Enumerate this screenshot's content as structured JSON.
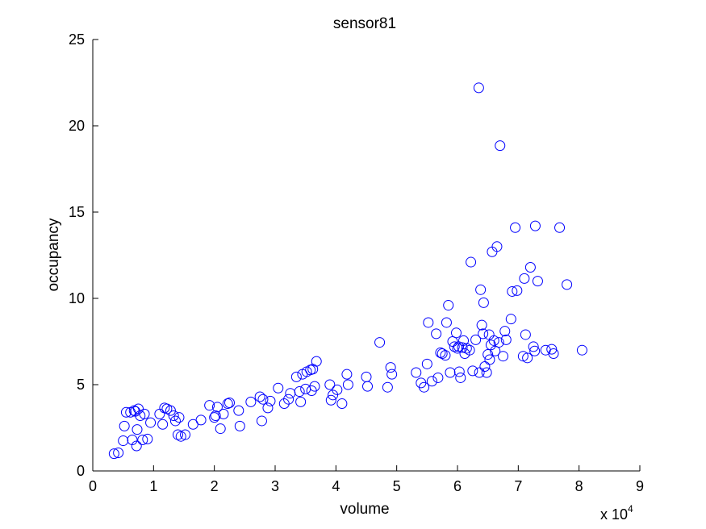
{
  "chart_data": {
    "type": "scatter",
    "title": "sensor81",
    "xlabel": "volume",
    "ylabel": "occupancy",
    "x_multiplier": {
      "base": "x 10",
      "exponent": "4"
    },
    "xlim": [
      0,
      9
    ],
    "ylim": [
      0,
      25
    ],
    "x_ticks": [
      "0",
      "1",
      "2",
      "3",
      "4",
      "5",
      "6",
      "7",
      "8",
      "9"
    ],
    "y_ticks": [
      "0",
      "5",
      "10",
      "15",
      "20",
      "25"
    ],
    "x_tick_values": [
      0,
      1,
      2,
      3,
      4,
      5,
      6,
      7,
      8,
      9
    ],
    "y_tick_values": [
      0,
      5,
      10,
      15,
      20,
      25
    ],
    "grid": false,
    "marker": "circle-open",
    "marker_color": "#0000ff",
    "series": [
      {
        "points": [
          [
            0.35,
            1.0
          ],
          [
            0.42,
            1.05
          ],
          [
            0.5,
            1.75
          ],
          [
            0.52,
            2.6
          ],
          [
            0.55,
            3.4
          ],
          [
            0.62,
            3.4
          ],
          [
            0.65,
            1.8
          ],
          [
            0.68,
            3.5
          ],
          [
            0.7,
            3.45
          ],
          [
            0.72,
            1.45
          ],
          [
            0.73,
            2.4
          ],
          [
            0.75,
            3.6
          ],
          [
            0.78,
            3.2
          ],
          [
            0.82,
            1.8
          ],
          [
            0.85,
            3.3
          ],
          [
            0.9,
            1.85
          ],
          [
            0.95,
            2.8
          ],
          [
            1.1,
            3.3
          ],
          [
            1.15,
            2.7
          ],
          [
            1.18,
            3.65
          ],
          [
            1.22,
            3.6
          ],
          [
            1.28,
            3.5
          ],
          [
            1.33,
            3.2
          ],
          [
            1.36,
            2.9
          ],
          [
            1.4,
            2.1
          ],
          [
            1.42,
            3.1
          ],
          [
            1.45,
            2.0
          ],
          [
            1.52,
            2.1
          ],
          [
            1.65,
            2.7
          ],
          [
            1.78,
            2.95
          ],
          [
            1.92,
            3.8
          ],
          [
            2.0,
            3.1
          ],
          [
            2.02,
            3.2
          ],
          [
            2.05,
            3.7
          ],
          [
            2.1,
            2.45
          ],
          [
            2.15,
            3.3
          ],
          [
            2.22,
            3.9
          ],
          [
            2.25,
            3.95
          ],
          [
            2.4,
            3.5
          ],
          [
            2.42,
            2.6
          ],
          [
            2.6,
            4.0
          ],
          [
            2.75,
            4.3
          ],
          [
            2.78,
            2.9
          ],
          [
            2.8,
            4.15
          ],
          [
            2.88,
            3.65
          ],
          [
            2.92,
            4.05
          ],
          [
            3.05,
            4.8
          ],
          [
            3.15,
            3.9
          ],
          [
            3.22,
            4.15
          ],
          [
            3.25,
            4.5
          ],
          [
            3.35,
            5.45
          ],
          [
            3.4,
            4.6
          ],
          [
            3.42,
            4.0
          ],
          [
            3.45,
            5.6
          ],
          [
            3.5,
            4.75
          ],
          [
            3.52,
            5.75
          ],
          [
            3.58,
            5.85
          ],
          [
            3.6,
            4.65
          ],
          [
            3.62,
            5.9
          ],
          [
            3.65,
            4.9
          ],
          [
            3.68,
            6.35
          ],
          [
            3.9,
            5.0
          ],
          [
            3.92,
            4.1
          ],
          [
            3.95,
            4.4
          ],
          [
            4.02,
            4.7
          ],
          [
            4.1,
            3.9
          ],
          [
            4.18,
            5.6
          ],
          [
            4.2,
            5.0
          ],
          [
            4.5,
            5.45
          ],
          [
            4.52,
            4.9
          ],
          [
            4.72,
            7.45
          ],
          [
            4.85,
            4.85
          ],
          [
            4.9,
            6.0
          ],
          [
            4.92,
            5.6
          ],
          [
            5.32,
            5.7
          ],
          [
            5.4,
            5.1
          ],
          [
            5.45,
            4.85
          ],
          [
            5.5,
            6.2
          ],
          [
            5.52,
            8.6
          ],
          [
            5.58,
            5.2
          ],
          [
            5.65,
            7.95
          ],
          [
            5.68,
            5.4
          ],
          [
            5.72,
            6.85
          ],
          [
            5.75,
            6.8
          ],
          [
            5.8,
            6.7
          ],
          [
            5.82,
            8.6
          ],
          [
            5.85,
            9.6
          ],
          [
            5.88,
            5.7
          ],
          [
            5.92,
            7.5
          ],
          [
            5.95,
            7.2
          ],
          [
            5.98,
            8.0
          ],
          [
            6.0,
            7.1
          ],
          [
            6.02,
            7.2
          ],
          [
            6.03,
            5.75
          ],
          [
            6.05,
            5.4
          ],
          [
            6.08,
            7.15
          ],
          [
            6.1,
            7.55
          ],
          [
            6.12,
            6.8
          ],
          [
            6.15,
            7.1
          ],
          [
            6.2,
            7.0
          ],
          [
            6.22,
            12.1
          ],
          [
            6.25,
            5.8
          ],
          [
            6.3,
            7.6
          ],
          [
            6.35,
            22.2
          ],
          [
            6.36,
            5.7
          ],
          [
            6.38,
            10.5
          ],
          [
            6.4,
            8.45
          ],
          [
            6.42,
            7.95
          ],
          [
            6.43,
            9.75
          ],
          [
            6.45,
            6.05
          ],
          [
            6.48,
            5.7
          ],
          [
            6.5,
            6.75
          ],
          [
            6.52,
            7.9
          ],
          [
            6.53,
            6.45
          ],
          [
            6.55,
            7.3
          ],
          [
            6.57,
            12.7
          ],
          [
            6.6,
            7.55
          ],
          [
            6.62,
            6.95
          ],
          [
            6.65,
            13.0
          ],
          [
            6.68,
            7.45
          ],
          [
            6.7,
            18.85
          ],
          [
            6.75,
            6.65
          ],
          [
            6.78,
            8.1
          ],
          [
            6.8,
            7.6
          ],
          [
            6.88,
            8.8
          ],
          [
            6.9,
            10.4
          ],
          [
            6.95,
            14.1
          ],
          [
            6.98,
            10.45
          ],
          [
            7.08,
            6.65
          ],
          [
            7.1,
            11.15
          ],
          [
            7.12,
            7.9
          ],
          [
            7.15,
            6.55
          ],
          [
            7.2,
            11.8
          ],
          [
            7.25,
            7.2
          ],
          [
            7.27,
            6.95
          ],
          [
            7.28,
            14.2
          ],
          [
            7.32,
            11.0
          ],
          [
            7.45,
            7.0
          ],
          [
            7.55,
            7.05
          ],
          [
            7.58,
            6.8
          ],
          [
            7.68,
            14.1
          ],
          [
            7.8,
            10.8
          ],
          [
            8.05,
            7.0
          ]
        ]
      }
    ]
  }
}
